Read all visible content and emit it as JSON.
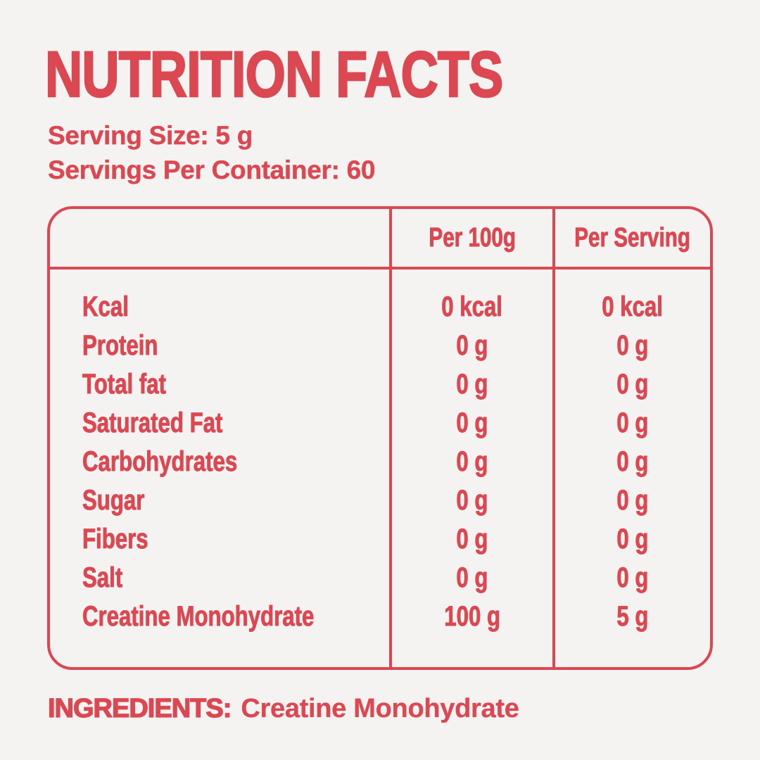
{
  "title": "NUTRITION FACTS",
  "serving": {
    "size_line": "Serving Size: 5 g",
    "per_container_line": "Servings Per Container: 60"
  },
  "table": {
    "columns": [
      "Per 100g",
      "Per Serving"
    ],
    "rows": [
      {
        "label": "Kcal",
        "per_100g": "0 kcal",
        "per_serving": "0 kcal"
      },
      {
        "label": "Protein",
        "per_100g": "0 g",
        "per_serving": "0 g"
      },
      {
        "label": "Total fat",
        "per_100g": "0 g",
        "per_serving": "0 g"
      },
      {
        "label": "Saturated Fat",
        "per_100g": "0 g",
        "per_serving": "0 g"
      },
      {
        "label": "Carbohydrates",
        "per_100g": "0 g",
        "per_serving": "0 g"
      },
      {
        "label": "Sugar",
        "per_100g": "0 g",
        "per_serving": "0 g"
      },
      {
        "label": "Fibers",
        "per_100g": "0 g",
        "per_serving": "0 g"
      },
      {
        "label": "Salt",
        "per_100g": "0 g",
        "per_serving": "0 g"
      },
      {
        "label": "Creatine Monohydrate",
        "per_100g": "100 g",
        "per_serving": "5 g"
      }
    ]
  },
  "ingredients": {
    "label": "INGREDIENTS:",
    "value": "Creatine Monohydrate"
  },
  "colors": {
    "accent": "#DC4852",
    "background": "#F4F3F2"
  }
}
